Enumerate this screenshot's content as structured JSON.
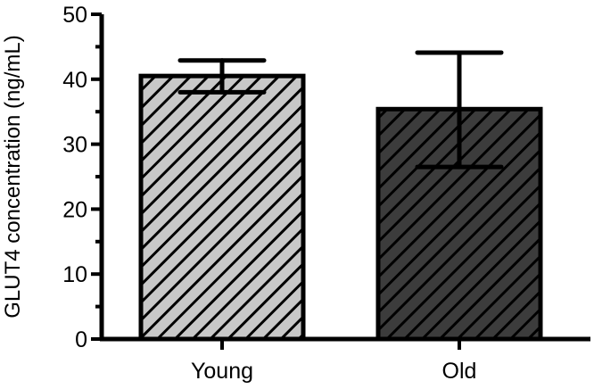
{
  "chart_data": {
    "type": "bar",
    "title": "",
    "xlabel": "",
    "ylabel": "GLUT4 concentration (ng/mL)",
    "categories": [
      "Young",
      "Old"
    ],
    "values": [
      40.5,
      35.4
    ],
    "error_bars": [
      {
        "upper": 42.9,
        "lower": 38.0
      },
      {
        "upper": 44.1,
        "lower": 26.5
      }
    ],
    "bar_colors": [
      "#c8c8c8",
      "#3c3c3c"
    ],
    "hatch": "diagonal",
    "ylim": [
      0,
      50
    ],
    "yticks": [
      0,
      10,
      20,
      30,
      40,
      50
    ],
    "ytick_labels": [
      "0",
      "10",
      "20",
      "30",
      "40",
      "50"
    ],
    "minor_yticks": [
      5,
      15,
      25,
      35,
      45
    ],
    "grid": false,
    "legend": null
  }
}
